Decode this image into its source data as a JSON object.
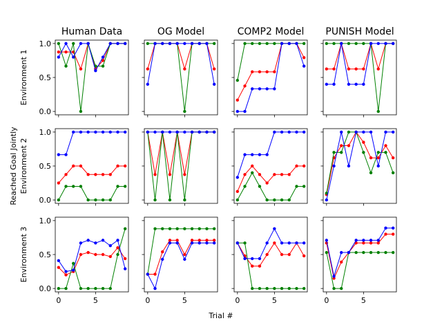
{
  "figure": {
    "xlabel": "Trial #",
    "ylabel": "Reached Goal Jointly"
  },
  "chart_data": {
    "type": "line",
    "columns": [
      "Human Data",
      "OG Model",
      "COMP2 Model",
      "PUNISH Model"
    ],
    "rows": [
      "Environment 1",
      "Environment 2",
      "Environment 3"
    ],
    "x": [
      0,
      1,
      2,
      3,
      4,
      5,
      6,
      7,
      8,
      9
    ],
    "xlim": [
      -0.45,
      9.45
    ],
    "ylim": [
      -0.05,
      1.05
    ],
    "yticks": [
      0,
      0.5,
      1
    ],
    "ytick_labels": [
      "0.0",
      "0.5",
      "1.0"
    ],
    "xticks": [
      0,
      5
    ],
    "xtick_labels": [
      "0",
      "5"
    ],
    "series_colors": {
      "red": "#ff0000",
      "green": "#008000",
      "blue": "#0000ff"
    },
    "panels": [
      [
        {
          "red": [
            0.875,
            0.875,
            0.875,
            0.625,
            1.0,
            0.625,
            0.75,
            1.0,
            1.0,
            1.0
          ],
          "green": [
            1.0,
            0.667,
            1.0,
            0.0,
            1.0,
            0.667,
            0.667,
            1.0,
            1.0,
            1.0
          ],
          "blue": [
            0.8,
            1.0,
            0.8,
            1.0,
            1.0,
            0.6,
            0.8,
            1.0,
            1.0,
            1.0
          ]
        },
        {
          "red": [
            0.625,
            1.0,
            1.0,
            1.0,
            1.0,
            0.625,
            1.0,
            1.0,
            1.0,
            0.625
          ],
          "green": [
            1.0,
            1.0,
            1.0,
            1.0,
            1.0,
            0.0,
            1.0,
            1.0,
            1.0,
            1.0
          ],
          "blue": [
            0.4,
            1.0,
            1.0,
            1.0,
            1.0,
            1.0,
            1.0,
            1.0,
            1.0,
            0.4
          ]
        },
        {
          "red": [
            0.167,
            0.375,
            0.583,
            0.583,
            0.583,
            0.583,
            1.0,
            1.0,
            1.0,
            0.792
          ],
          "green": [
            0.458,
            1.0,
            1.0,
            1.0,
            1.0,
            1.0,
            1.0,
            1.0,
            1.0,
            1.0
          ],
          "blue": [
            0.0,
            0.0,
            0.333,
            0.333,
            0.333,
            0.333,
            1.0,
            1.0,
            1.0,
            0.667
          ]
        },
        {
          "red": [
            0.625,
            0.625,
            1.0,
            0.625,
            0.625,
            0.625,
            1.0,
            0.625,
            1.0,
            1.0
          ],
          "green": [
            1.0,
            1.0,
            1.0,
            1.0,
            1.0,
            1.0,
            1.0,
            0.0,
            1.0,
            1.0
          ],
          "blue": [
            0.4,
            0.4,
            1.0,
            0.4,
            0.4,
            0.4,
            1.0,
            1.0,
            1.0,
            1.0
          ]
        }
      ],
      [
        {
          "red": [
            0.25,
            0.375,
            0.5,
            0.5,
            0.375,
            0.375,
            0.375,
            0.375,
            0.5,
            0.5
          ],
          "green": [
            0.0,
            0.2,
            0.2,
            0.2,
            0.0,
            0.0,
            0.0,
            0.0,
            0.2,
            0.2
          ],
          "blue": [
            0.667,
            0.667,
            1.0,
            1.0,
            1.0,
            1.0,
            1.0,
            1.0,
            1.0,
            1.0
          ]
        },
        {
          "red": [
            1.0,
            0.375,
            1.0,
            0.375,
            1.0,
            0.375,
            1.0,
            1.0,
            1.0,
            1.0
          ],
          "green": [
            1.0,
            0.0,
            1.0,
            0.0,
            1.0,
            0.0,
            1.0,
            1.0,
            1.0,
            1.0
          ],
          "blue": [
            1.0,
            1.0,
            1.0,
            1.0,
            1.0,
            1.0,
            1.0,
            1.0,
            1.0,
            1.0
          ]
        },
        {
          "red": [
            0.125,
            0.375,
            0.5,
            0.375,
            0.25,
            0.375,
            0.375,
            0.375,
            0.5,
            0.5
          ],
          "green": [
            0.0,
            0.2,
            0.4,
            0.2,
            0.0,
            0.0,
            0.0,
            0.0,
            0.2,
            0.2
          ],
          "blue": [
            0.333,
            0.667,
            0.667,
            0.667,
            0.667,
            1.0,
            1.0,
            1.0,
            1.0,
            1.0
          ]
        },
        {
          "red": [
            0.08,
            0.62,
            0.8,
            0.8,
            1.0,
            0.85,
            0.62,
            0.62,
            0.8,
            0.62
          ],
          "green": [
            0.1,
            0.7,
            0.7,
            1.0,
            1.0,
            0.7,
            0.4,
            0.7,
            0.7,
            0.4
          ],
          "blue": [
            0.0,
            0.5,
            1.0,
            0.5,
            1.0,
            1.0,
            1.0,
            0.5,
            1.0,
            1.0
          ]
        }
      ],
      [
        {
          "red": [
            0.31,
            0.2,
            0.25,
            0.5,
            0.53,
            0.5,
            0.5,
            0.47,
            0.6,
            0.44
          ],
          "green": [
            0.0,
            0.0,
            0.37,
            0.0,
            0.0,
            0.0,
            0.0,
            0.0,
            0.5,
            0.88
          ],
          "blue": [
            0.41,
            0.25,
            0.27,
            0.67,
            0.71,
            0.67,
            0.71,
            0.63,
            0.71,
            0.29
          ]
        },
        {
          "red": [
            0.21,
            0.21,
            0.54,
            0.71,
            0.71,
            0.5,
            0.71,
            0.71,
            0.71,
            0.71
          ],
          "green": [
            0.21,
            0.88,
            0.88,
            0.88,
            0.88,
            0.88,
            0.88,
            0.88,
            0.88,
            0.88
          ],
          "blue": [
            0.21,
            0.0,
            0.43,
            0.67,
            0.67,
            0.43,
            0.67,
            0.67,
            0.67,
            0.67
          ]
        },
        {
          "red": [
            0.67,
            0.48,
            0.33,
            0.33,
            0.5,
            0.67,
            0.5,
            0.5,
            0.67,
            0.48
          ],
          "green": [
            0.67,
            0.67,
            0.0,
            0.0,
            0.0,
            0.0,
            0.0,
            0.0,
            0.0,
            0.0
          ],
          "blue": [
            0.67,
            0.44,
            0.44,
            0.44,
            0.67,
            0.88,
            0.67,
            0.67,
            0.67,
            0.67
          ]
        },
        {
          "red": [
            0.67,
            0.15,
            0.39,
            0.53,
            0.67,
            0.67,
            0.67,
            0.67,
            0.8,
            0.8
          ],
          "green": [
            0.53,
            0.0,
            0.0,
            0.53,
            0.53,
            0.53,
            0.53,
            0.53,
            0.53,
            0.53
          ],
          "blue": [
            0.71,
            0.18,
            0.53,
            0.53,
            0.71,
            0.71,
            0.71,
            0.71,
            0.89,
            0.89
          ]
        }
      ]
    ]
  }
}
